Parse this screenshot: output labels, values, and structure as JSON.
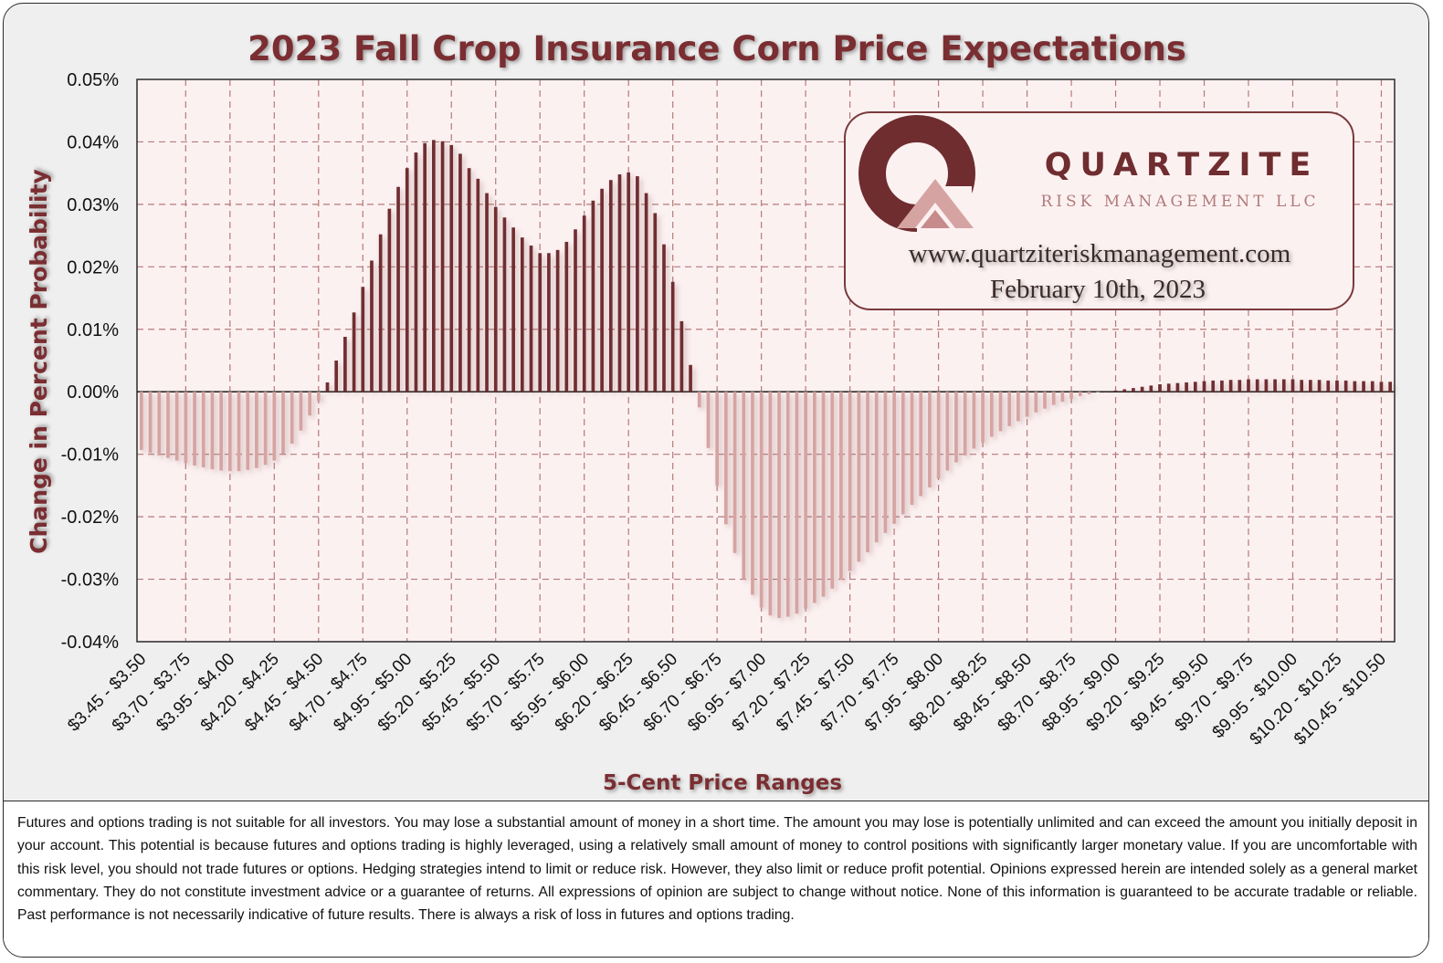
{
  "chart_data": {
    "type": "bar",
    "title": "2023 Fall Crop Insurance Corn Price Expectations",
    "xlabel": "5-Cent Price Ranges",
    "ylabel": "Change in Percent Probability",
    "ylim": [
      -0.04,
      0.05
    ],
    "yticks": [
      "0.05%",
      "0.04%",
      "0.03%",
      "0.02%",
      "0.01%",
      "0.00%",
      "-0.01%",
      "-0.02%",
      "-0.03%",
      "-0.04%"
    ],
    "ytick_values": [
      0.05,
      0.04,
      0.03,
      0.02,
      0.01,
      0.0,
      -0.01,
      -0.02,
      -0.03,
      -0.04
    ],
    "xtick_labels": [
      "$3.45 - $3.50",
      "$3.70 - $3.75",
      "$3.95 - $4.00",
      "$4.20 - $4.25",
      "$4.45 - $4.50",
      "$4.70 - $4.75",
      "$4.95 - $5.00",
      "$5.20 - $5.25",
      "$5.45 - $5.50",
      "$5.70 - $5.75",
      "$5.95 - $6.00",
      "$6.20 - $6.25",
      "$6.45 - $6.50",
      "$6.70 - $6.75",
      "$6.95 - $7.00",
      "$7.20 - $7.25",
      "$7.45 - $7.50",
      "$7.70 - $7.75",
      "$7.95 - $8.00",
      "$8.20 - $8.25",
      "$8.45 - $8.50",
      "$8.70 - $8.75",
      "$8.95 - $9.00",
      "$9.20 - $9.25",
      "$9.45 - $9.50",
      "$9.70 - $9.75",
      "$9.95 - $10.00",
      "$10.20 - $10.25",
      "$10.45 - $10.50"
    ],
    "categories_note": "142 consecutive 5-cent ranges from $3.45 - $3.50 to $10.50 - $10.55; every 5th range labeled",
    "bin_start": 3.45,
    "bin_width": 0.05,
    "values": [
      -0.0093,
      -0.0098,
      -0.0102,
      -0.0106,
      -0.011,
      -0.0114,
      -0.0118,
      -0.0121,
      -0.0124,
      -0.0126,
      -0.0127,
      -0.0127,
      -0.0125,
      -0.0122,
      -0.0117,
      -0.011,
      -0.0099,
      -0.0083,
      -0.0062,
      -0.0038,
      -0.0015,
      0.0015,
      0.005,
      0.0088,
      0.0127,
      0.0168,
      0.021,
      0.0252,
      0.0293,
      0.0328,
      0.0358,
      0.0383,
      0.0398,
      0.0403,
      0.0401,
      0.0395,
      0.0381,
      0.0358,
      0.0341,
      0.0318,
      0.0296,
      0.0279,
      0.0263,
      0.0247,
      0.0234,
      0.0222,
      0.0222,
      0.0227,
      0.024,
      0.026,
      0.0282,
      0.0306,
      0.0325,
      0.0339,
      0.0348,
      0.0351,
      0.0345,
      0.0318,
      0.0286,
      0.0236,
      0.0176,
      0.0113,
      0.0043,
      -0.0025,
      -0.009,
      -0.015,
      -0.0212,
      -0.0258,
      -0.03,
      -0.0325,
      -0.0345,
      -0.0358,
      -0.0362,
      -0.036,
      -0.0355,
      -0.0347,
      -0.0338,
      -0.0328,
      -0.0315,
      -0.0301,
      -0.0287,
      -0.0272,
      -0.0257,
      -0.0241,
      -0.0226,
      -0.0211,
      -0.0196,
      -0.0181,
      -0.0167,
      -0.0153,
      -0.0139,
      -0.0126,
      -0.0113,
      -0.0102,
      -0.0091,
      -0.0081,
      -0.0072,
      -0.0063,
      -0.0055,
      -0.0047,
      -0.004,
      -0.0033,
      -0.0027,
      -0.0021,
      -0.0016,
      -0.0011,
      -0.0007,
      -0.0004,
      -0.0001,
      0.0,
      0.0002,
      0.0004,
      0.0006,
      0.0008,
      0.001,
      0.0012,
      0.0013,
      0.0014,
      0.0015,
      0.0016,
      0.0017,
      0.0018,
      0.0018,
      0.0019,
      0.0019,
      0.002,
      0.002,
      0.002,
      0.002,
      0.002,
      0.002,
      0.0019,
      0.0019,
      0.0019,
      0.0018,
      0.0018,
      0.0018,
      0.0017,
      0.0017,
      0.0017,
      0.0016,
      0.0016
    ],
    "colors": {
      "positive": "#6f2d30",
      "negative": "#d6a3a3",
      "title": "#7a2e30",
      "grid": "#b57a7a",
      "plot_bg": "#fcf1f1",
      "frame_bg": "#efefef"
    },
    "legend": "none"
  },
  "logo": {
    "name": "QUARTZITE",
    "subtitle": "RISK MANAGEMENT LLC",
    "website": "www.quartziteriskmanagement.com",
    "date": "February 10th, 2023"
  },
  "disclaimer": "Futures and options trading is not suitable for all investors. You may lose a substantial amount of money in a short time. The amount you may lose is potentially unlimited and can exceed the amount you initially deposit in your account. This potential is because futures and options trading is highly leveraged, using a relatively small amount of money to control positions with significantly larger monetary value. If you are uncomfortable with this risk level, you should not trade futures or options. Hedging strategies intend to limit or reduce risk. However, they also limit or reduce profit potential. Opinions expressed herein are intended solely as a general market commentary. They do not constitute investment advice or a guarantee of returns. All expressions of opinion are subject to change without notice. None of this information is guaranteed to be accurate tradable or reliable. Past performance is not necessarily indicative of future results. There is always a risk of loss in futures and options trading."
}
